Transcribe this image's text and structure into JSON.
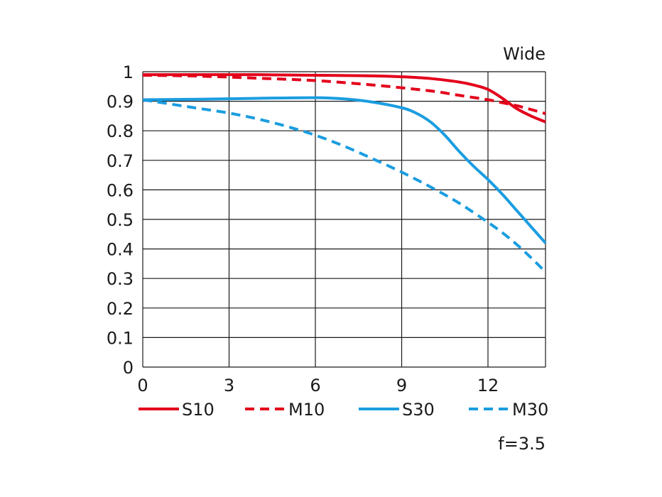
{
  "chart_data": {
    "type": "line",
    "title": "Wide",
    "note": "f=3.5",
    "xlabel": "",
    "ylabel": "",
    "xlim": [
      0,
      14
    ],
    "ylim": [
      0,
      1
    ],
    "x_ticks": [
      "0",
      "3",
      "6",
      "9",
      "12"
    ],
    "y_ticks": [
      "0",
      "0.1",
      "0.2",
      "0.3",
      "0.4",
      "0.5",
      "0.6",
      "0.7",
      "0.8",
      "0.9",
      "1"
    ],
    "grid": true,
    "legend_position": "bottom",
    "series": [
      {
        "name": "S10",
        "color": "#e3001b",
        "style": "solid",
        "points": [
          [
            0,
            0.99
          ],
          [
            2,
            0.99
          ],
          [
            4,
            0.99
          ],
          [
            6,
            0.988
          ],
          [
            8,
            0.986
          ],
          [
            9,
            0.983
          ],
          [
            10,
            0.977
          ],
          [
            11,
            0.965
          ],
          [
            11.5,
            0.955
          ],
          [
            12,
            0.94
          ],
          [
            12.5,
            0.91
          ],
          [
            13,
            0.875
          ],
          [
            13.5,
            0.85
          ],
          [
            14,
            0.83
          ]
        ]
      },
      {
        "name": "M10",
        "color": "#e3001b",
        "style": "dashed",
        "points": [
          [
            0,
            0.988
          ],
          [
            2,
            0.985
          ],
          [
            4,
            0.978
          ],
          [
            6,
            0.97
          ],
          [
            8,
            0.955
          ],
          [
            10,
            0.935
          ],
          [
            11,
            0.92
          ],
          [
            12,
            0.905
          ],
          [
            12.5,
            0.895
          ],
          [
            13,
            0.885
          ],
          [
            13.5,
            0.872
          ],
          [
            14,
            0.858
          ]
        ]
      },
      {
        "name": "S30",
        "color": "#1a9de0",
        "style": "solid",
        "points": [
          [
            0,
            0.905
          ],
          [
            2,
            0.907
          ],
          [
            4,
            0.91
          ],
          [
            6,
            0.912
          ],
          [
            7,
            0.908
          ],
          [
            8,
            0.897
          ],
          [
            9,
            0.878
          ],
          [
            9.5,
            0.86
          ],
          [
            10,
            0.83
          ],
          [
            10.5,
            0.785
          ],
          [
            11,
            0.73
          ],
          [
            11.5,
            0.68
          ],
          [
            12,
            0.635
          ],
          [
            12.5,
            0.585
          ],
          [
            13,
            0.53
          ],
          [
            13.5,
            0.475
          ],
          [
            14,
            0.42
          ]
        ]
      },
      {
        "name": "M30",
        "color": "#1a9de0",
        "style": "dashed",
        "points": [
          [
            0,
            0.905
          ],
          [
            1,
            0.89
          ],
          [
            2,
            0.875
          ],
          [
            3,
            0.86
          ],
          [
            4,
            0.84
          ],
          [
            5,
            0.815
          ],
          [
            6,
            0.785
          ],
          [
            7,
            0.748
          ],
          [
            8,
            0.705
          ],
          [
            9,
            0.66
          ],
          [
            10,
            0.61
          ],
          [
            11,
            0.555
          ],
          [
            12,
            0.49
          ],
          [
            12.5,
            0.455
          ],
          [
            13,
            0.415
          ],
          [
            13.5,
            0.37
          ],
          [
            14,
            0.322
          ]
        ]
      }
    ]
  }
}
